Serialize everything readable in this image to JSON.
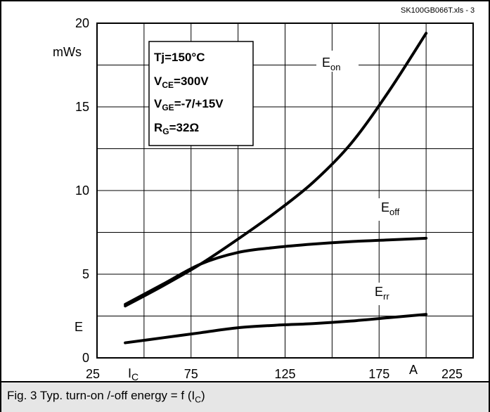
{
  "file_label": "SK100GB066T.xls - 3",
  "y_unit": "mWs",
  "y_axis_symbol": "E",
  "x_axis_symbol": "I",
  "x_axis_symbol_sub": "C",
  "x_unit": "A",
  "caption_text": "Fig. 3 Typ. turn-on /-off energy = f (I",
  "caption_sub": "C",
  "caption_end": ")",
  "conditions": [
    {
      "main": "Tj=150°C",
      "sub": "",
      "rest": ""
    },
    {
      "main": "V",
      "sub": "CE",
      "rest": "=300V"
    },
    {
      "main": "V",
      "sub": "GE",
      "rest": "=-7/+15V"
    },
    {
      "main": "R",
      "sub": "G",
      "rest": "=32Ω"
    }
  ],
  "chart_data": {
    "type": "line",
    "xlim": [
      25,
      225
    ],
    "ylim": [
      0,
      20
    ],
    "x_ticks": [
      "25",
      "75",
      "125",
      "175",
      "225"
    ],
    "x_tick_values": [
      25,
      75,
      125,
      175,
      225
    ],
    "y_ticks": [
      "0",
      "5",
      "10",
      "15",
      "20"
    ],
    "y_tick_values": [
      0,
      5,
      10,
      15,
      20
    ],
    "grid": true,
    "series": [
      {
        "name": "E",
        "name_sub": "on",
        "x": [
          40,
          60,
          80,
          100,
          120,
          140,
          160,
          180,
          200
        ],
        "y": [
          3.1,
          4.3,
          5.6,
          7.1,
          8.7,
          10.5,
          12.8,
          15.9,
          19.4
        ]
      },
      {
        "name": "E",
        "name_sub": "off",
        "x": [
          40,
          60,
          80,
          100,
          120,
          140,
          160,
          180,
          200
        ],
        "y": [
          3.2,
          4.4,
          5.6,
          6.3,
          6.6,
          6.8,
          6.95,
          7.05,
          7.15
        ]
      },
      {
        "name": "E",
        "name_sub": "rr",
        "x": [
          40,
          60,
          80,
          100,
          120,
          140,
          160,
          180,
          200
        ],
        "y": [
          0.9,
          1.2,
          1.5,
          1.8,
          1.95,
          2.05,
          2.2,
          2.4,
          2.6
        ]
      }
    ]
  }
}
